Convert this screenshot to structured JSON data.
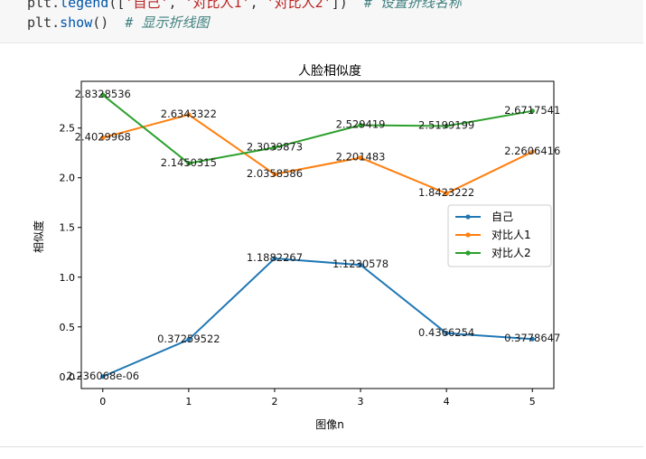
{
  "code": {
    "line1": {
      "obj": "plt",
      "dot": ".",
      "fn": "legend",
      "open": "([",
      "s1": "'自己'",
      "sep1": ", ",
      "s2": "'对比人1'",
      "sep2": ", ",
      "s3": "'对比人2'",
      "close": "])  ",
      "comment": "# 设置折线名称"
    },
    "line2": {
      "obj": "plt",
      "dot": ".",
      "fn": "show",
      "paren": "()  ",
      "comment": "# 显示折线图"
    }
  },
  "chart_data": {
    "type": "line",
    "title": "人脸相似度",
    "xlabel": "图像n",
    "ylabel": "相似度",
    "x": [
      0,
      1,
      2,
      3,
      4,
      5
    ],
    "xlim": [
      -0.25,
      5.25
    ],
    "ylim": [
      -0.12,
      2.97
    ],
    "x_ticks": [
      "0",
      "1",
      "2",
      "3",
      "4",
      "5"
    ],
    "y_ticks": [
      {
        "value": 0.0,
        "label": "0.0"
      },
      {
        "value": 0.5,
        "label": "0.5"
      },
      {
        "value": 1.0,
        "label": "1.0"
      },
      {
        "value": 1.5,
        "label": "1.5"
      },
      {
        "value": 2.0,
        "label": "2.0"
      },
      {
        "value": 2.5,
        "label": "2.5"
      }
    ],
    "grid": false,
    "legend_position": "center-right",
    "series": [
      {
        "name": "自己",
        "color": "#1f77b4",
        "values": [
          2.236068e-06,
          0.37259522,
          1.1882267,
          1.1230578,
          0.4366254,
          0.3778647
        ],
        "labels": [
          "2.236068e-06",
          "0.37259522",
          "1.1882267",
          "1.1230578",
          "0.4366254",
          "0.3778647"
        ]
      },
      {
        "name": "对比人1",
        "color": "#ff7f0e",
        "values": [
          2.4029968,
          2.6343322,
          2.0358586,
          2.201483,
          1.8423222,
          2.2606416
        ],
        "labels": [
          "2.4029968",
          "2.6343322",
          "2.0358586",
          "2.201483",
          "1.8423222",
          "2.2606416"
        ]
      },
      {
        "name": "对比人2",
        "color": "#2ca02c",
        "values": [
          2.8328536,
          2.1450315,
          2.3039873,
          2.529419,
          2.5199199,
          2.6717541
        ],
        "labels": [
          "2.8328536",
          "2.1450315",
          "2.3039873",
          "2.529419",
          "2.5199199",
          "2.6717541"
        ]
      }
    ]
  }
}
